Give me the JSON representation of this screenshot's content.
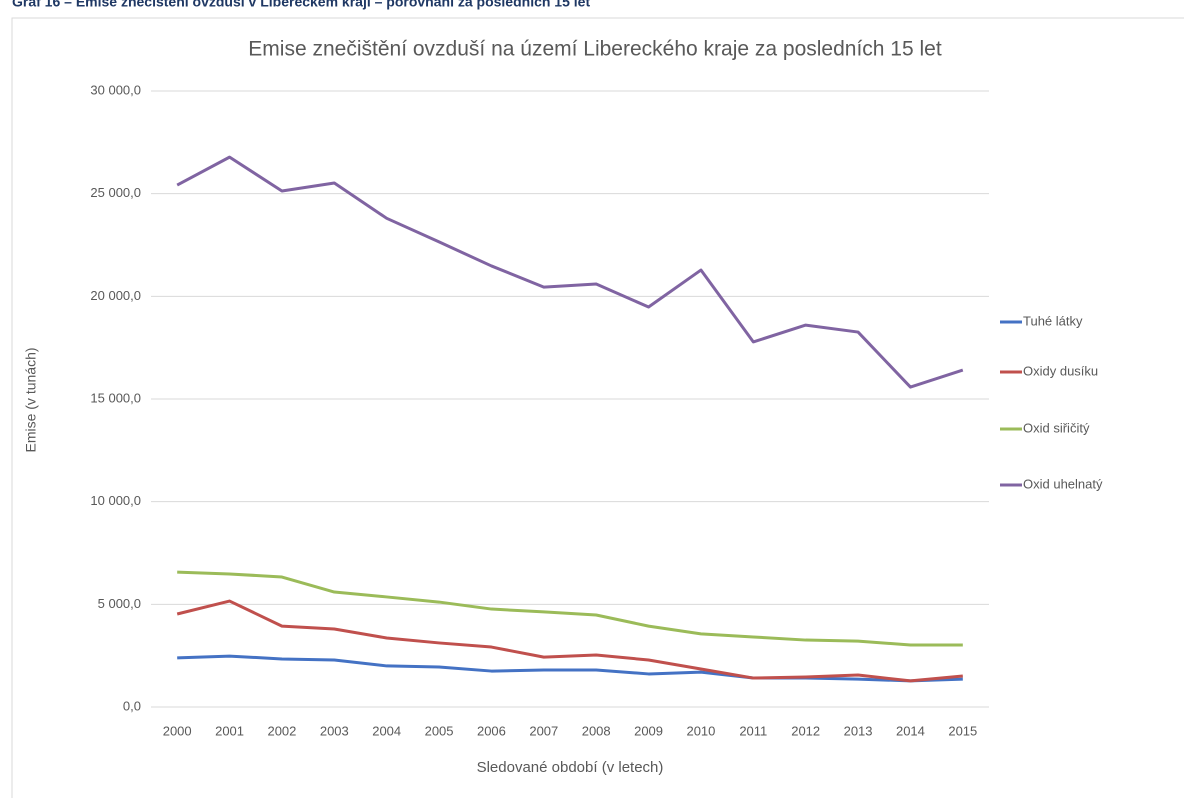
{
  "caption": "Graf 16 – Emise znečištění ovzduší v Libereckém kraji – porovnání za posledních 15 let",
  "chart_data": {
    "type": "line",
    "title": "Emise znečištění ovzduší na území Libereckého kraje za posledních 15 let",
    "xlabel": "Sledované období (v letech)",
    "ylabel": "Emise (v tunách)",
    "categories": [
      "2000",
      "2001",
      "2002",
      "2003",
      "2004",
      "2005",
      "2006",
      "2007",
      "2008",
      "2009",
      "2010",
      "2011",
      "2012",
      "2013",
      "2014",
      "2015"
    ],
    "ylim": [
      0,
      30000
    ],
    "yticks": [
      {
        "value": 0,
        "label": "0,0"
      },
      {
        "value": 5000,
        "label": "5 000,0"
      },
      {
        "value": 10000,
        "label": "10 000,0"
      },
      {
        "value": 15000,
        "label": "15 000,0"
      },
      {
        "value": 20000,
        "label": "20 000,0"
      },
      {
        "value": 25000,
        "label": "25 000,0"
      },
      {
        "value": 30000,
        "label": "30 000,0"
      }
    ],
    "grid": true,
    "legend": "right",
    "series": [
      {
        "name": "Tuhé látky",
        "color": "#4472c4",
        "values": [
          2390,
          2480,
          2340,
          2290,
          2000,
          1950,
          1750,
          1800,
          1800,
          1610,
          1700,
          1410,
          1410,
          1360,
          1270,
          1360
        ]
      },
      {
        "name": "Oxidy dusíku",
        "color": "#c0504d",
        "values": [
          4530,
          5160,
          3940,
          3800,
          3360,
          3120,
          2920,
          2430,
          2530,
          2290,
          1850,
          1410,
          1460,
          1560,
          1270,
          1510
        ]
      },
      {
        "name": "Oxid siřičitý",
        "color": "#9bbb59",
        "values": [
          6570,
          6480,
          6330,
          5600,
          5360,
          5110,
          4770,
          4630,
          4480,
          3940,
          3560,
          3410,
          3260,
          3210,
          3020,
          3020
        ]
      },
      {
        "name": "Oxid uhelnatý",
        "color": "#8064a2",
        "values": [
          25420,
          26780,
          25130,
          25520,
          23800,
          22650,
          21480,
          20450,
          20600,
          19480,
          21280,
          17780,
          18600,
          18260,
          15580,
          16410
        ]
      }
    ]
  }
}
